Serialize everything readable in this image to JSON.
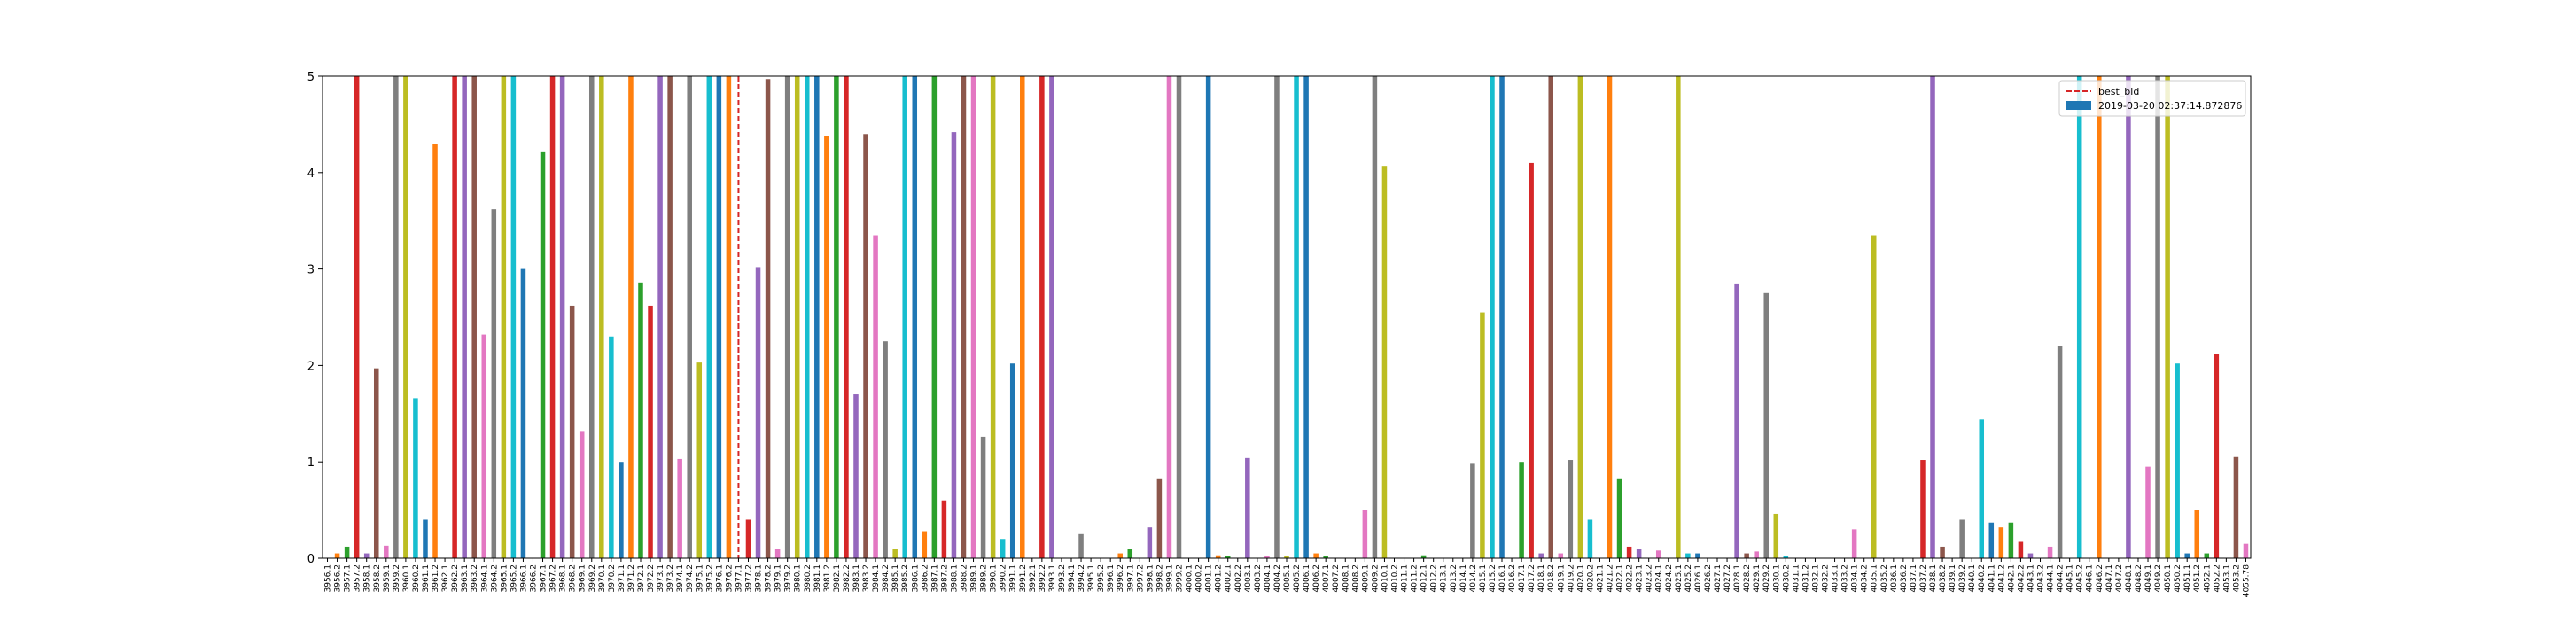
{
  "chart_data": {
    "type": "bar",
    "ylim": [
      0,
      5
    ],
    "yticks": [
      0,
      1,
      2,
      3,
      4,
      5
    ],
    "colors": [
      "#1f77b4",
      "#ff7f0e",
      "#2ca02c",
      "#d62728",
      "#9467bd",
      "#8c564b",
      "#e377c2",
      "#7f7f7f",
      "#bcbd22",
      "#17becf"
    ],
    "legend": "upper right",
    "series_name": "2019-03-20 02:37:14.872876",
    "series_color": "#1f77b4",
    "best_bid": {
      "name": "best_bid",
      "category": "3977.1",
      "color": "#d62728"
    },
    "categories": [
      "3956.1",
      "3956.2",
      "3957.1",
      "3957.2",
      "3958.1",
      "3958.2",
      "3959.1",
      "3959.2",
      "3960.1",
      "3960.2",
      "3961.1",
      "3961.2",
      "3962.1",
      "3962.2",
      "3963.1",
      "3963.2",
      "3964.1",
      "3964.2",
      "3965.1",
      "3965.2",
      "3966.1",
      "3966.2",
      "3967.1",
      "3967.2",
      "3968.1",
      "3968.2",
      "3969.1",
      "3969.2",
      "3970.1",
      "3970.2",
      "3971.1",
      "3971.2",
      "3972.1",
      "3972.2",
      "3973.1",
      "3973.2",
      "3974.1",
      "3974.2",
      "3975.1",
      "3975.2",
      "3976.1",
      "3976.2",
      "3977.1",
      "3977.2",
      "3978.1",
      "3978.2",
      "3979.1",
      "3979.2",
      "3980.1",
      "3980.2",
      "3981.1",
      "3981.2",
      "3982.1",
      "3982.2",
      "3983.1",
      "3983.2",
      "3984.1",
      "3984.2",
      "3985.1",
      "3985.2",
      "3986.1",
      "3986.2",
      "3987.1",
      "3987.2",
      "3988.1",
      "3988.2",
      "3989.1",
      "3989.2",
      "3990.1",
      "3990.2",
      "3991.1",
      "3991.2",
      "3992.1",
      "3992.2",
      "3993.1",
      "3993.2",
      "3994.1",
      "3994.2",
      "3995.1",
      "3995.2",
      "3996.1",
      "3996.2",
      "3997.1",
      "3997.2",
      "3998.1",
      "3998.2",
      "3999.1",
      "3999.2",
      "4000.1",
      "4000.2",
      "4001.1",
      "4001.2",
      "4002.1",
      "4002.2",
      "4003.1",
      "4003.2",
      "4004.1",
      "4004.2",
      "4005.1",
      "4005.2",
      "4006.1",
      "4006.2",
      "4007.1",
      "4007.2",
      "4008.1",
      "4008.2",
      "4009.1",
      "4009.2",
      "4010.1",
      "4010.2",
      "4011.1",
      "4011.2",
      "4012.1",
      "4012.2",
      "4013.1",
      "4013.2",
      "4014.1",
      "4014.2",
      "4015.1",
      "4015.2",
      "4016.1",
      "4016.2",
      "4017.1",
      "4017.2",
      "4018.1",
      "4018.2",
      "4019.1",
      "4019.2",
      "4020.1",
      "4020.2",
      "4021.1",
      "4021.2",
      "4022.1",
      "4022.2",
      "4023.1",
      "4023.2",
      "4024.1",
      "4024.2",
      "4025.1",
      "4025.2",
      "4026.1",
      "4026.2",
      "4027.1",
      "4027.2",
      "4028.1",
      "4028.2",
      "4029.1",
      "4029.2",
      "4030.1",
      "4030.2",
      "4031.1",
      "4031.2",
      "4032.1",
      "4032.2",
      "4033.1",
      "4033.2",
      "4034.1",
      "4034.2",
      "4035.1",
      "4035.2",
      "4036.1",
      "4036.2",
      "4037.1",
      "4037.2",
      "4038.1",
      "4038.2",
      "4039.1",
      "4039.2",
      "4040.1",
      "4040.2",
      "4041.1",
      "4041.2",
      "4042.1",
      "4042.2",
      "4043.1",
      "4043.2",
      "4044.1",
      "4044.2",
      "4045.1",
      "4045.2",
      "4046.1",
      "4046.2",
      "4047.1",
      "4047.2",
      "4048.1",
      "4048.2",
      "4049.1",
      "4049.2",
      "4050.1",
      "4050.2",
      "4051.1",
      "4051.2",
      "4052.1",
      "4052.2",
      "4053.1",
      "4053.2",
      "4055.78"
    ],
    "values": [
      0,
      0.05,
      0.12,
      5,
      0.05,
      1.97,
      0.13,
      5,
      5,
      1.66,
      0.4,
      4.3,
      0,
      5,
      5,
      5,
      2.32,
      3.62,
      5,
      5,
      3,
      0,
      4.22,
      5,
      5,
      2.62,
      1.32,
      5,
      5,
      2.3,
      1,
      5,
      2.86,
      2.62,
      5,
      5,
      1.03,
      5,
      2.03,
      5,
      5,
      5,
      0,
      0.4,
      3.02,
      4.97,
      0.1,
      5,
      5,
      5,
      5,
      4.38,
      5,
      5,
      1.7,
      4.4,
      3.35,
      2.25,
      0.1,
      5,
      5,
      0.28,
      5,
      0.6,
      4.42,
      5,
      5,
      1.26,
      5,
      0.2,
      2.02,
      5,
      0,
      5,
      5,
      0,
      0,
      0.25,
      0,
      0,
      0,
      0.05,
      0.1,
      0,
      0.32,
      0.82,
      5,
      5,
      0,
      0,
      5,
      0.03,
      0.02,
      0,
      1.04,
      0,
      0.02,
      5,
      0.02,
      5,
      5,
      0.05,
      0.02,
      0,
      0,
      0,
      0.5,
      5,
      4.07,
      0,
      0,
      0,
      0.03,
      0,
      0,
      0,
      0,
      0.98,
      2.55,
      5,
      5,
      0,
      1,
      4.1,
      0.05,
      5,
      0.05,
      1.02,
      5,
      0.4,
      0,
      5,
      0.82,
      0.12,
      0.1,
      0,
      0.08,
      0,
      5,
      0.05,
      0.05,
      0,
      0,
      0,
      2.85,
      0.05,
      0.07,
      2.75,
      0.46,
      0.02,
      0,
      0,
      0,
      0,
      0,
      0,
      0.3,
      0,
      3.35,
      0,
      0,
      0,
      0,
      1.02,
      5,
      0.12,
      0,
      0.4,
      0,
      1.44,
      0.37,
      0.32,
      0.37,
      0.17,
      0.05,
      0,
      0.12,
      2.2,
      0,
      5,
      0,
      5,
      0,
      0,
      5,
      0,
      0.95,
      5,
      5,
      2.02,
      0.05,
      0.5,
      0.05,
      2.12,
      0,
      1.05,
      0.15
    ]
  }
}
